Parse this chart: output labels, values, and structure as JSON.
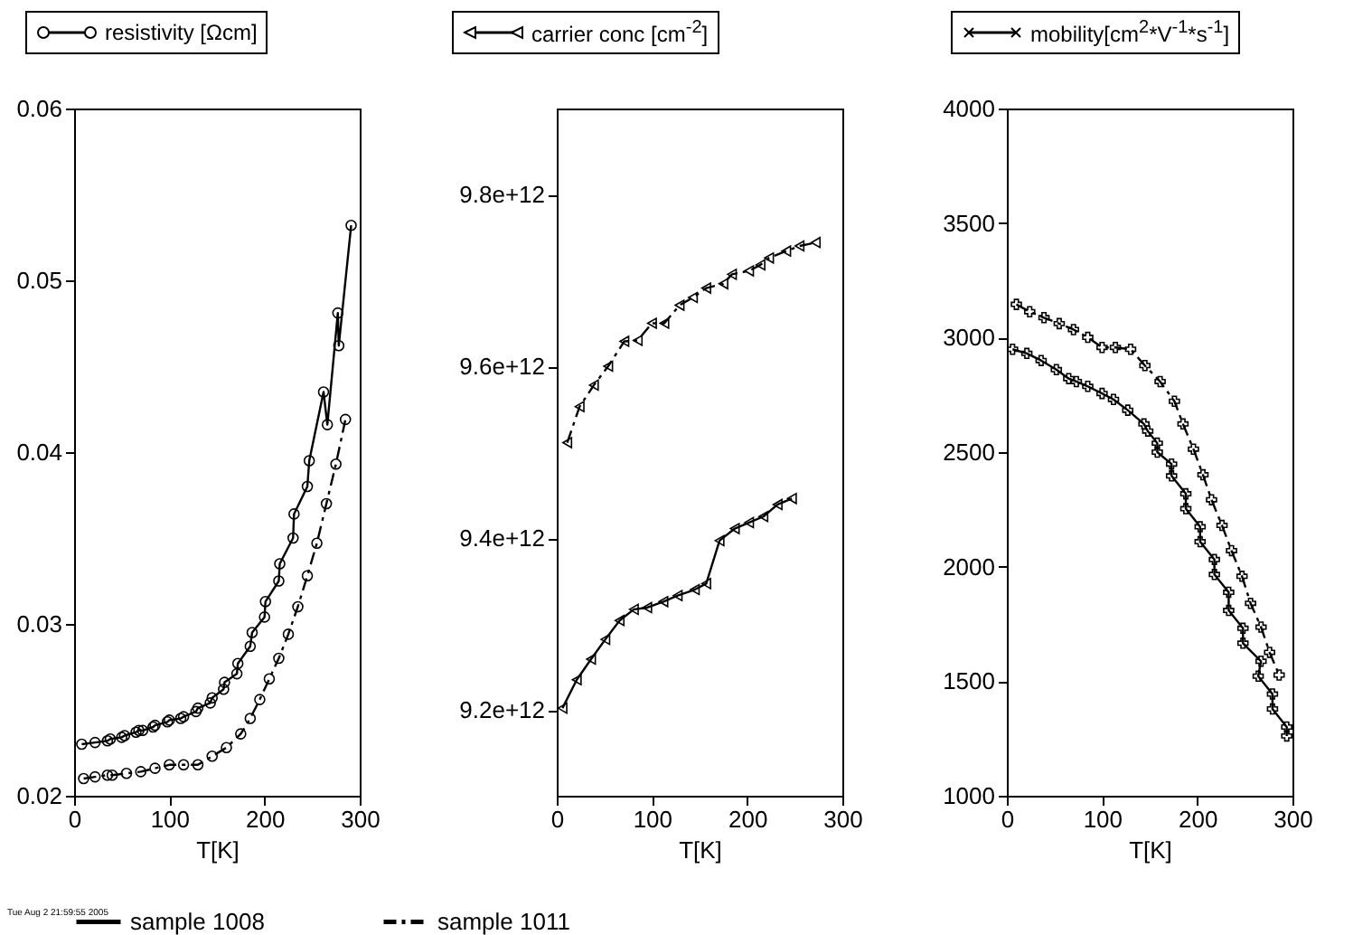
{
  "chart_data": [
    {
      "type": "line",
      "title": "resistivity [Ωcm]",
      "xlabel": "T[K]",
      "xlim": [
        0,
        300
      ],
      "xticks": [
        0,
        100,
        200,
        300
      ],
      "ylim": [
        0.02,
        0.06
      ],
      "yticks": [
        0.02,
        0.03,
        0.04,
        0.05,
        0.06
      ],
      "marker": "circle",
      "legend": "bottom",
      "annotations": [
        "Tue Aug 2 21:59:55 2005"
      ],
      "series": [
        {
          "name": "sample 1008",
          "color": "#000000",
          "line_style": "solid",
          "x": [
            8,
            22,
            35,
            38,
            50,
            53,
            65,
            68,
            72,
            83,
            85,
            98,
            100,
            112,
            115,
            128,
            130,
            143,
            145,
            157,
            158,
            171,
            172,
            185,
            187,
            200,
            201,
            215,
            216,
            230,
            231,
            245,
            247,
            262,
            266,
            277,
            278,
            291
          ],
          "values": [
            0.023,
            0.0231,
            0.0232,
            0.0233,
            0.0234,
            0.0235,
            0.0237,
            0.0238,
            0.0238,
            0.024,
            0.0241,
            0.0243,
            0.0244,
            0.0245,
            0.0246,
            0.0249,
            0.0251,
            0.0254,
            0.0257,
            0.0262,
            0.0266,
            0.0271,
            0.0277,
            0.0287,
            0.0295,
            0.0304,
            0.0313,
            0.0325,
            0.0335,
            0.035,
            0.0364,
            0.038,
            0.0395,
            0.0435,
            0.0416,
            0.0481,
            0.0462,
            0.0532
          ]
        },
        {
          "name": "sample 1011",
          "color": "#000000",
          "line_style": "dashed",
          "x": [
            10,
            22,
            35,
            40,
            55,
            70,
            85,
            100,
            115,
            130,
            145,
            160,
            175,
            185,
            195,
            205,
            215,
            225,
            235,
            245,
            255,
            265,
            275,
            285
          ],
          "values": [
            0.021,
            0.0211,
            0.0212,
            0.0212,
            0.0213,
            0.0214,
            0.0216,
            0.0218,
            0.0218,
            0.0218,
            0.0223,
            0.0228,
            0.0236,
            0.0245,
            0.0256,
            0.0268,
            0.028,
            0.0294,
            0.031,
            0.0328,
            0.0347,
            0.037,
            0.0393,
            0.0419
          ]
        }
      ]
    },
    {
      "type": "line",
      "title": "carrier conc [cm$^{-2}$]",
      "xlabel": "T[K]",
      "xlim": [
        0,
        300
      ],
      "xticks": [
        0,
        100,
        200,
        300
      ],
      "ylim": [
        9100000000000,
        9900000000000
      ],
      "yticks": [
        {
          "value": 9200000000000,
          "label": "9.2e+12"
        },
        {
          "value": 9400000000000,
          "label": "9.4e+12"
        },
        {
          "value": 9600000000000,
          "label": "9.6e+12"
        },
        {
          "value": 9800000000000,
          "label": "9.8e+12"
        }
      ],
      "marker": "triangle",
      "legend": "bottom",
      "series": [
        {
          "name": "sample 1008",
          "color": "#000000",
          "line_style": "solid",
          "x": [
            6,
            21,
            36,
            51,
            66,
            81,
            95,
            112,
            127,
            145,
            157,
            171,
            187,
            202,
            217,
            232,
            247
          ],
          "values": [
            9202000000000,
            9235000000000,
            9259000000000,
            9282000000000,
            9304000000000,
            9317000000000,
            9319000000000,
            9326000000000,
            9333000000000,
            9340000000000,
            9347000000000,
            9397000000000,
            9411000000000,
            9418000000000,
            9425000000000,
            9439000000000,
            9446000000000
          ]
        },
        {
          "name": "sample 1011",
          "color": "#000000",
          "line_style": "dashed",
          "x": [
            11,
            24,
            39,
            54,
            71,
            85,
            100,
            113,
            129,
            143,
            157,
            175,
            184,
            202,
            214,
            223,
            241,
            255,
            272
          ],
          "values": [
            9511000000000,
            9553000000000,
            9578000000000,
            9600000000000,
            9629000000000,
            9630000000000,
            9650000000000,
            9650000000000,
            9671000000000,
            9680000000000,
            9691000000000,
            9696000000000,
            9707000000000,
            9711000000000,
            9718000000000,
            9726000000000,
            9734000000000,
            9740000000000,
            9744000000000
          ]
        }
      ]
    },
    {
      "type": "line",
      "title": "mobility[cm$^{2}$*V$^{-1}$*s$^{-1}$]",
      "xlabel": "T[K]",
      "xlim": [
        0,
        300
      ],
      "xticks": [
        0,
        100,
        200,
        300
      ],
      "ylim": [
        1000,
        4000
      ],
      "yticks": [
        1000,
        1500,
        2000,
        2500,
        3000,
        3500,
        4000
      ],
      "marker": "cross",
      "legend": "bottom",
      "series": [
        {
          "name": "sample 1008",
          "color": "#000000",
          "line_style": "solid",
          "x": [
            6,
            21,
            36,
            52,
            65,
            73,
            85,
            100,
            112,
            127,
            144,
            148,
            158,
            158,
            173,
            173,
            188,
            188,
            203,
            203,
            218,
            218,
            233,
            233,
            248,
            248,
            267,
            264,
            279,
            279,
            294,
            294
          ],
          "values": [
            2949,
            2931,
            2900,
            2860,
            2821,
            2808,
            2787,
            2756,
            2730,
            2683,
            2623,
            2592,
            2539,
            2500,
            2448,
            2396,
            2318,
            2253,
            2174,
            2109,
            2031,
            1966,
            1888,
            1809,
            1731,
            1666,
            1587,
            1522,
            1444,
            1379,
            1300,
            1261
          ]
        },
        {
          "name": "sample 1011",
          "color": "#000000",
          "line_style": "dashed",
          "x": [
            10,
            24,
            39,
            55,
            70,
            85,
            100,
            114,
            130,
            145,
            161,
            176,
            185,
            196,
            206,
            215,
            226,
            236,
            247,
            256,
            267,
            276,
            286
          ],
          "values": [
            3145,
            3113,
            3087,
            3061,
            3035,
            3001,
            2957,
            2957,
            2949,
            2878,
            2808,
            2722,
            2623,
            2513,
            2401,
            2292,
            2180,
            2070,
            1958,
            1840,
            1736,
            1626,
            1527
          ]
        }
      ]
    }
  ]
}
